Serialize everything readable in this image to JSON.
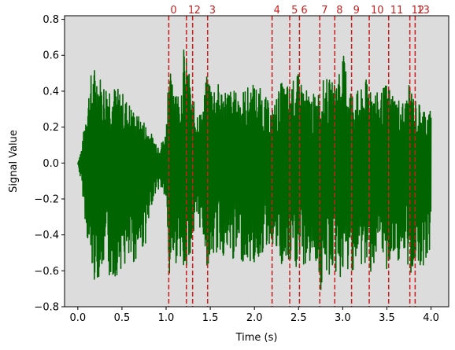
{
  "chart_data": {
    "type": "line",
    "title": "",
    "xlabel": "Time (s)",
    "ylabel": "Signal Value",
    "xlim": [
      -0.15,
      4.2
    ],
    "ylim": [
      -0.8,
      0.82
    ],
    "x_ticks": [
      0.0,
      0.5,
      1.0,
      1.5,
      2.0,
      2.5,
      3.0,
      3.5,
      4.0
    ],
    "x_tick_labels": [
      "0.0",
      "0.5",
      "1.0",
      "1.5",
      "2.0",
      "2.5",
      "3.0",
      "3.5",
      "4.0"
    ],
    "y_ticks": [
      -0.8,
      -0.6,
      -0.4,
      -0.2,
      0.0,
      0.2,
      0.4,
      0.6,
      0.8
    ],
    "y_tick_labels": [
      "−0.8",
      "−0.6",
      "−0.4",
      "−0.2",
      "0.0",
      "0.2",
      "0.4",
      "0.6",
      "0.8"
    ],
    "grid": false,
    "plot_background": "#dcdcdc",
    "signal_color": "#006400",
    "marker_color": "#c81e1e",
    "signal": {
      "x_range": [
        0.0,
        4.0
      ],
      "envelope_times": [
        0.0,
        0.05,
        0.1,
        0.15,
        0.2,
        0.25,
        0.3,
        0.35,
        0.4,
        0.45,
        0.5,
        0.55,
        0.6,
        0.65,
        0.7,
        0.75,
        0.8,
        0.85,
        0.9,
        0.95,
        1.0,
        1.03,
        1.06,
        1.1,
        1.15,
        1.2,
        1.25,
        1.3,
        1.35,
        1.4,
        1.47,
        1.5,
        1.6,
        1.7,
        1.8,
        1.9,
        2.0,
        2.1,
        2.2,
        2.3,
        2.4,
        2.5,
        2.6,
        2.7,
        2.75,
        2.8,
        2.9,
        3.0,
        3.1,
        3.2,
        3.3,
        3.4,
        3.5,
        3.6,
        3.7,
        3.76,
        3.82,
        3.9,
        4.0
      ],
      "envelope_upper": [
        0.0,
        0.1,
        0.35,
        0.5,
        0.55,
        0.5,
        0.45,
        0.48,
        0.44,
        0.42,
        0.4,
        0.36,
        0.33,
        0.28,
        0.26,
        0.24,
        0.2,
        0.15,
        0.12,
        0.12,
        0.18,
        0.62,
        0.45,
        0.55,
        0.35,
        0.65,
        0.55,
        0.35,
        0.32,
        0.28,
        0.52,
        0.48,
        0.44,
        0.42,
        0.4,
        0.42,
        0.45,
        0.4,
        0.3,
        0.45,
        0.44,
        0.5,
        0.4,
        0.38,
        0.44,
        0.48,
        0.45,
        0.62,
        0.42,
        0.4,
        0.5,
        0.38,
        0.45,
        0.38,
        0.34,
        0.45,
        0.36,
        0.32,
        0.3
      ],
      "envelope_lower": [
        0.0,
        -0.15,
        -0.4,
        -0.6,
        -0.68,
        -0.62,
        -0.6,
        -0.65,
        -0.66,
        -0.62,
        -0.58,
        -0.6,
        -0.6,
        -0.55,
        -0.5,
        -0.48,
        -0.4,
        -0.2,
        -0.15,
        -0.15,
        -0.22,
        -0.78,
        -0.5,
        -0.6,
        -0.45,
        -0.72,
        -0.55,
        -0.45,
        -0.4,
        -0.35,
        -0.6,
        -0.55,
        -0.5,
        -0.55,
        -0.55,
        -0.55,
        -0.58,
        -0.5,
        -0.45,
        -0.6,
        -0.6,
        -0.6,
        -0.58,
        -0.55,
        -0.75,
        -0.65,
        -0.62,
        -0.66,
        -0.6,
        -0.58,
        -0.62,
        -0.55,
        -0.6,
        -0.55,
        -0.55,
        -0.65,
        -0.55,
        -0.58,
        -0.5
      ]
    },
    "markers": [
      {
        "label": "0",
        "x": 1.03
      },
      {
        "label": "1",
        "x": 1.23
      },
      {
        "label": "2",
        "x": 1.3
      },
      {
        "label": "3",
        "x": 1.47
      },
      {
        "label": "4",
        "x": 2.2
      },
      {
        "label": "5",
        "x": 2.4
      },
      {
        "label": "6",
        "x": 2.51
      },
      {
        "label": "7",
        "x": 2.74
      },
      {
        "label": "8",
        "x": 2.91
      },
      {
        "label": "9",
        "x": 3.1
      },
      {
        "label": "10",
        "x": 3.3
      },
      {
        "label": "11",
        "x": 3.52
      },
      {
        "label": "12",
        "x": 3.76
      },
      {
        "label": "13",
        "x": 3.82
      }
    ]
  }
}
